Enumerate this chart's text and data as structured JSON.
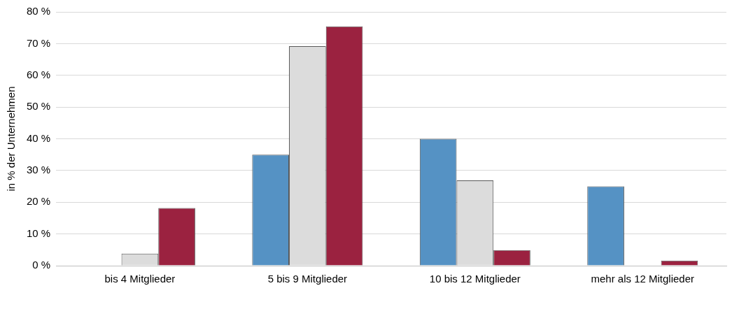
{
  "chart_data": {
    "type": "bar",
    "ylabel": "in % der Unternehmen",
    "categories": [
      "bis 4 Mitglieder",
      "5 bis 9 Mitglieder",
      "10 bis 12 Mitglieder",
      "mehr als 12 Mitglieder"
    ],
    "series": [
      {
        "color": "#5592c4",
        "values": [
          0,
          35,
          40,
          25
        ]
      },
      {
        "color": "#dcdcdc",
        "values": [
          3.8,
          69.2,
          26.9,
          0
        ]
      },
      {
        "color": "#9b2240",
        "values": [
          18.2,
          75.4,
          4.9,
          1.6
        ]
      }
    ],
    "ylim": [
      0,
      80
    ],
    "yticks": [
      {
        "value": 0,
        "label": "0 %"
      },
      {
        "value": 10,
        "label": "10 %"
      },
      {
        "value": 20,
        "label": "20 %"
      },
      {
        "value": 30,
        "label": "30 %"
      },
      {
        "value": 40,
        "label": "40 %"
      },
      {
        "value": 50,
        "label": "50 %"
      },
      {
        "value": 60,
        "label": "60 %"
      },
      {
        "value": 70,
        "label": "70 %"
      },
      {
        "value": 80,
        "label": "80 %"
      }
    ],
    "grid": "y"
  }
}
